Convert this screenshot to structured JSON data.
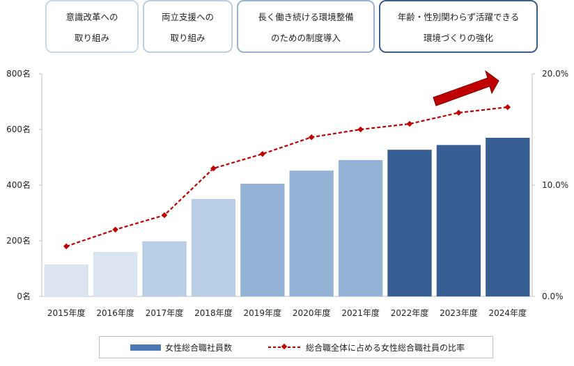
{
  "phases": [
    {
      "line1": "意識改革への",
      "line2": "取り組み",
      "border": "#c7d8e9"
    },
    {
      "line1": "両立支援への",
      "line2": "取り組み",
      "border": "#b9cde2"
    },
    {
      "line1": "長く働き続ける環境整備",
      "line2": "のための制度導入",
      "border": "#97b2cf"
    },
    {
      "line1": "年齢・性別関わらず活躍できる",
      "line2": "環境づくりの強化",
      "border": "#3a5f8f"
    }
  ],
  "legend": {
    "bar_label": "女性総合職社員数",
    "line_label": "総合職全体に占める女性総合職社員の比率"
  },
  "colors": {
    "line": "#c00000",
    "arrow": "#c00000",
    "axis": "#bfbfbf"
  },
  "chart_data": {
    "type": "bar",
    "categories": [
      "2015年度",
      "2016年度",
      "2017年度",
      "2018年度",
      "2019年度",
      "2020年度",
      "2021年度",
      "2022年度",
      "2023年度",
      "2024年度"
    ],
    "left_axis": {
      "ticks": [
        "0名",
        "200名",
        "400名",
        "600名",
        "800名"
      ],
      "range": [
        0,
        800
      ]
    },
    "right_axis": {
      "ticks": [
        "0.0%",
        "10.0%",
        "20.0%"
      ],
      "range": [
        0,
        20
      ]
    },
    "series": [
      {
        "kind": "bar",
        "axis": "left",
        "values": [
          115,
          160,
          198,
          350,
          405,
          452,
          490,
          527,
          544,
          570
        ],
        "colors": [
          "#dbe5f1",
          "#dbe5f1",
          "#b9cde5",
          "#b9cde5",
          "#95b3d7",
          "#95b3d7",
          "#95b3d7",
          "#375f93",
          "#375f93",
          "#375f93"
        ]
      },
      {
        "kind": "line",
        "axis": "right",
        "values": [
          4.5,
          6.0,
          7.3,
          11.5,
          12.8,
          14.3,
          15.0,
          15.5,
          16.5,
          17.0
        ]
      }
    ],
    "grid": false,
    "legend_position": "bottom"
  }
}
